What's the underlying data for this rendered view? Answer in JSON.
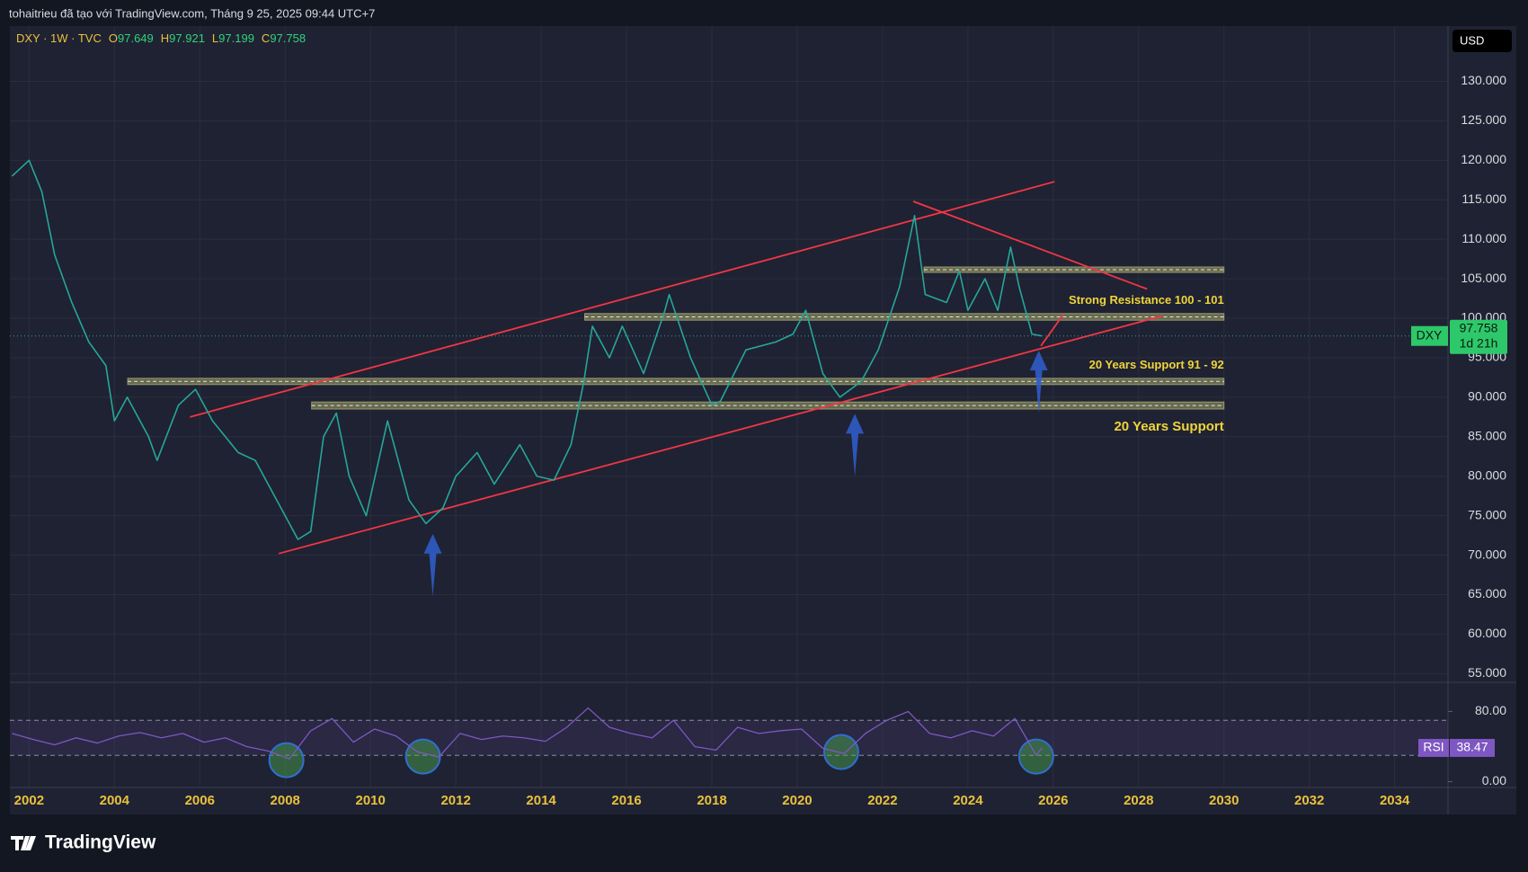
{
  "header": {
    "title": "tohaitrieu đã tạo với TradingView.com, Tháng 9 25, 2025 09:44 UTC+7"
  },
  "chart_data": [
    {
      "type": "line",
      "symbol": "DXY · 1W · TVC",
      "ohlc": [
        {
          "label": "O",
          "value": 97.649
        },
        {
          "label": "H",
          "value": 97.921
        },
        {
          "label": "L",
          "value": 97.199
        },
        {
          "label": "C",
          "value": 97.758
        }
      ],
      "currency": "USD",
      "countdown": "1d 21h",
      "x": [
        2001.6,
        2002.0,
        2002.3,
        2002.6,
        2003.0,
        2003.4,
        2003.8,
        2004.0,
        2004.3,
        2004.8,
        2005.0,
        2005.5,
        2005.9,
        2006.3,
        2006.9,
        2007.3,
        2007.9,
        2008.3,
        2008.6,
        2008.9,
        2009.2,
        2009.5,
        2009.9,
        2010.4,
        2010.9,
        2011.3,
        2011.7,
        2012.0,
        2012.5,
        2012.9,
        2013.5,
        2013.9,
        2014.3,
        2014.7,
        2015.0,
        2015.2,
        2015.6,
        2015.9,
        2016.4,
        2016.9,
        2017.0,
        2017.5,
        2018.0,
        2018.2,
        2018.8,
        2019.5,
        2019.9,
        2020.2,
        2020.6,
        2021.0,
        2021.5,
        2021.9,
        2022.4,
        2022.75,
        2023.0,
        2023.5,
        2023.8,
        2024.0,
        2024.4,
        2024.7,
        2025.0,
        2025.2,
        2025.5,
        2025.73
      ],
      "series": [
        {
          "name": "DXY",
          "color": "#26a69a",
          "values": [
            118,
            120,
            116,
            108,
            102,
            97,
            94,
            87,
            90,
            85,
            82,
            89,
            91,
            87,
            83,
            82,
            76,
            72,
            73,
            85,
            88,
            80,
            75,
            87,
            77,
            74,
            76,
            80,
            83,
            79,
            84,
            80,
            79.5,
            84,
            92,
            99,
            95,
            99,
            93,
            101,
            103,
            95,
            89,
            89.5,
            96,
            97,
            98,
            101,
            93,
            90,
            92,
            96,
            104,
            113,
            103,
            102,
            106,
            101,
            105,
            101,
            109,
            104,
            98,
            97.758
          ]
        }
      ],
      "xlim": [
        2001.55,
        2035.25
      ],
      "xticks": [
        2002,
        2004,
        2006,
        2008,
        2010,
        2012,
        2014,
        2016,
        2018,
        2020,
        2022,
        2024,
        2026,
        2028,
        2030,
        2032,
        2034
      ],
      "ylim": [
        53.9,
        137.0
      ],
      "yticks": [
        {
          "value": 55,
          "label": "55.000"
        },
        {
          "value": 60,
          "label": "60.000"
        },
        {
          "value": 65,
          "label": "65.000"
        },
        {
          "value": 70,
          "label": "70.000"
        },
        {
          "value": 75,
          "label": "75.000"
        },
        {
          "value": 80,
          "label": "80.000"
        },
        {
          "value": 85,
          "label": "85.000"
        },
        {
          "value": 90,
          "label": "90.000"
        },
        {
          "value": 95,
          "label": "95.000"
        },
        {
          "value": 100,
          "label": "100.000"
        },
        {
          "value": 105,
          "label": "105.000"
        },
        {
          "value": 110,
          "label": "110.000"
        },
        {
          "value": 115,
          "label": "115.000"
        },
        {
          "value": 120,
          "label": "120.000"
        },
        {
          "value": 125,
          "label": "125.000"
        },
        {
          "value": 130,
          "label": "130.000"
        }
      ],
      "grid": true,
      "zones": [
        {
          "low": 105.8,
          "high": 106.5,
          "x": [
            2022.97,
            2030.0
          ]
        },
        {
          "low": 99.75,
          "high": 100.6,
          "x": [
            2015.02,
            2030.0
          ],
          "label": "Strong Resistance 100 - 101",
          "label_position": "above"
        },
        {
          "low": 91.6,
          "high": 92.4,
          "x": [
            2004.31,
            2030.0
          ],
          "label": "20 Years Support 91 - 92",
          "label_position": "above"
        },
        {
          "low": 88.5,
          "high": 89.4,
          "x": [
            2008.62,
            2030.0
          ],
          "label": "20 Years Support",
          "label_position": "below"
        }
      ],
      "trendlines": [
        {
          "x": [
            2005.77,
            2026.03
          ],
          "y": [
            87.5,
            117.3
          ],
          "color": "#f23645"
        },
        {
          "x": [
            2007.85,
            2028.56
          ],
          "y": [
            70.2,
            100.3
          ],
          "color": "#f23645"
        },
        {
          "x": [
            2022.72,
            2028.2
          ],
          "y": [
            114.8,
            103.7
          ],
          "color": "#f23645"
        },
        {
          "x": [
            2025.71,
            2026.24
          ],
          "y": [
            96.5,
            100.5
          ],
          "color": "#f23645"
        }
      ],
      "arrows": [
        {
          "x": 2011.46,
          "y": 72.7,
          "color": "#2f5fd0"
        },
        {
          "x": 2021.35,
          "y": 87.9,
          "color": "#2f5fd0"
        },
        {
          "x": 2025.66,
          "y": 95.9,
          "color": "#2f5fd0"
        }
      ]
    },
    {
      "type": "line",
      "name": "RSI",
      "color": "#7e57c2",
      "x": [
        2001.6,
        2002.1,
        2002.6,
        2003.1,
        2003.6,
        2004.1,
        2004.6,
        2005.1,
        2005.6,
        2006.1,
        2006.6,
        2007.1,
        2007.6,
        2008.1,
        2008.6,
        2009.1,
        2009.6,
        2010.1,
        2010.6,
        2011.1,
        2011.6,
        2012.1,
        2012.6,
        2013.1,
        2013.6,
        2014.1,
        2014.6,
        2015.1,
        2015.6,
        2016.1,
        2016.6,
        2017.1,
        2017.6,
        2018.1,
        2018.6,
        2019.1,
        2019.6,
        2020.1,
        2020.6,
        2021.1,
        2021.6,
        2022.1,
        2022.6,
        2023.1,
        2023.6,
        2024.1,
        2024.6,
        2025.1,
        2025.6,
        2025.73
      ],
      "values": [
        55,
        48,
        42,
        50,
        44,
        52,
        56,
        50,
        55,
        45,
        50,
        40,
        35,
        26,
        58,
        72,
        45,
        60,
        52,
        34,
        28,
        55,
        48,
        52,
        50,
        46,
        62,
        84,
        62,
        55,
        50,
        70,
        40,
        36,
        62,
        55,
        58,
        60,
        38,
        32,
        55,
        70,
        80,
        55,
        50,
        58,
        52,
        72,
        30,
        38.47
      ],
      "ylim": [
        -6.7,
        113.3
      ],
      "yticks": [
        {
          "value": 80,
          "label": "80.00"
        },
        {
          "value": 0,
          "label": "0.00"
        }
      ],
      "bands": [
        70,
        30
      ],
      "circles": [
        {
          "x": 2008.03,
          "y": 24.5
        },
        {
          "x": 2011.23,
          "y": 28.6
        },
        {
          "x": 2021.03,
          "y": 33.8
        },
        {
          "x": 2025.6,
          "y": 28.6
        }
      ]
    }
  ],
  "footer": {
    "brand": "TradingView"
  }
}
